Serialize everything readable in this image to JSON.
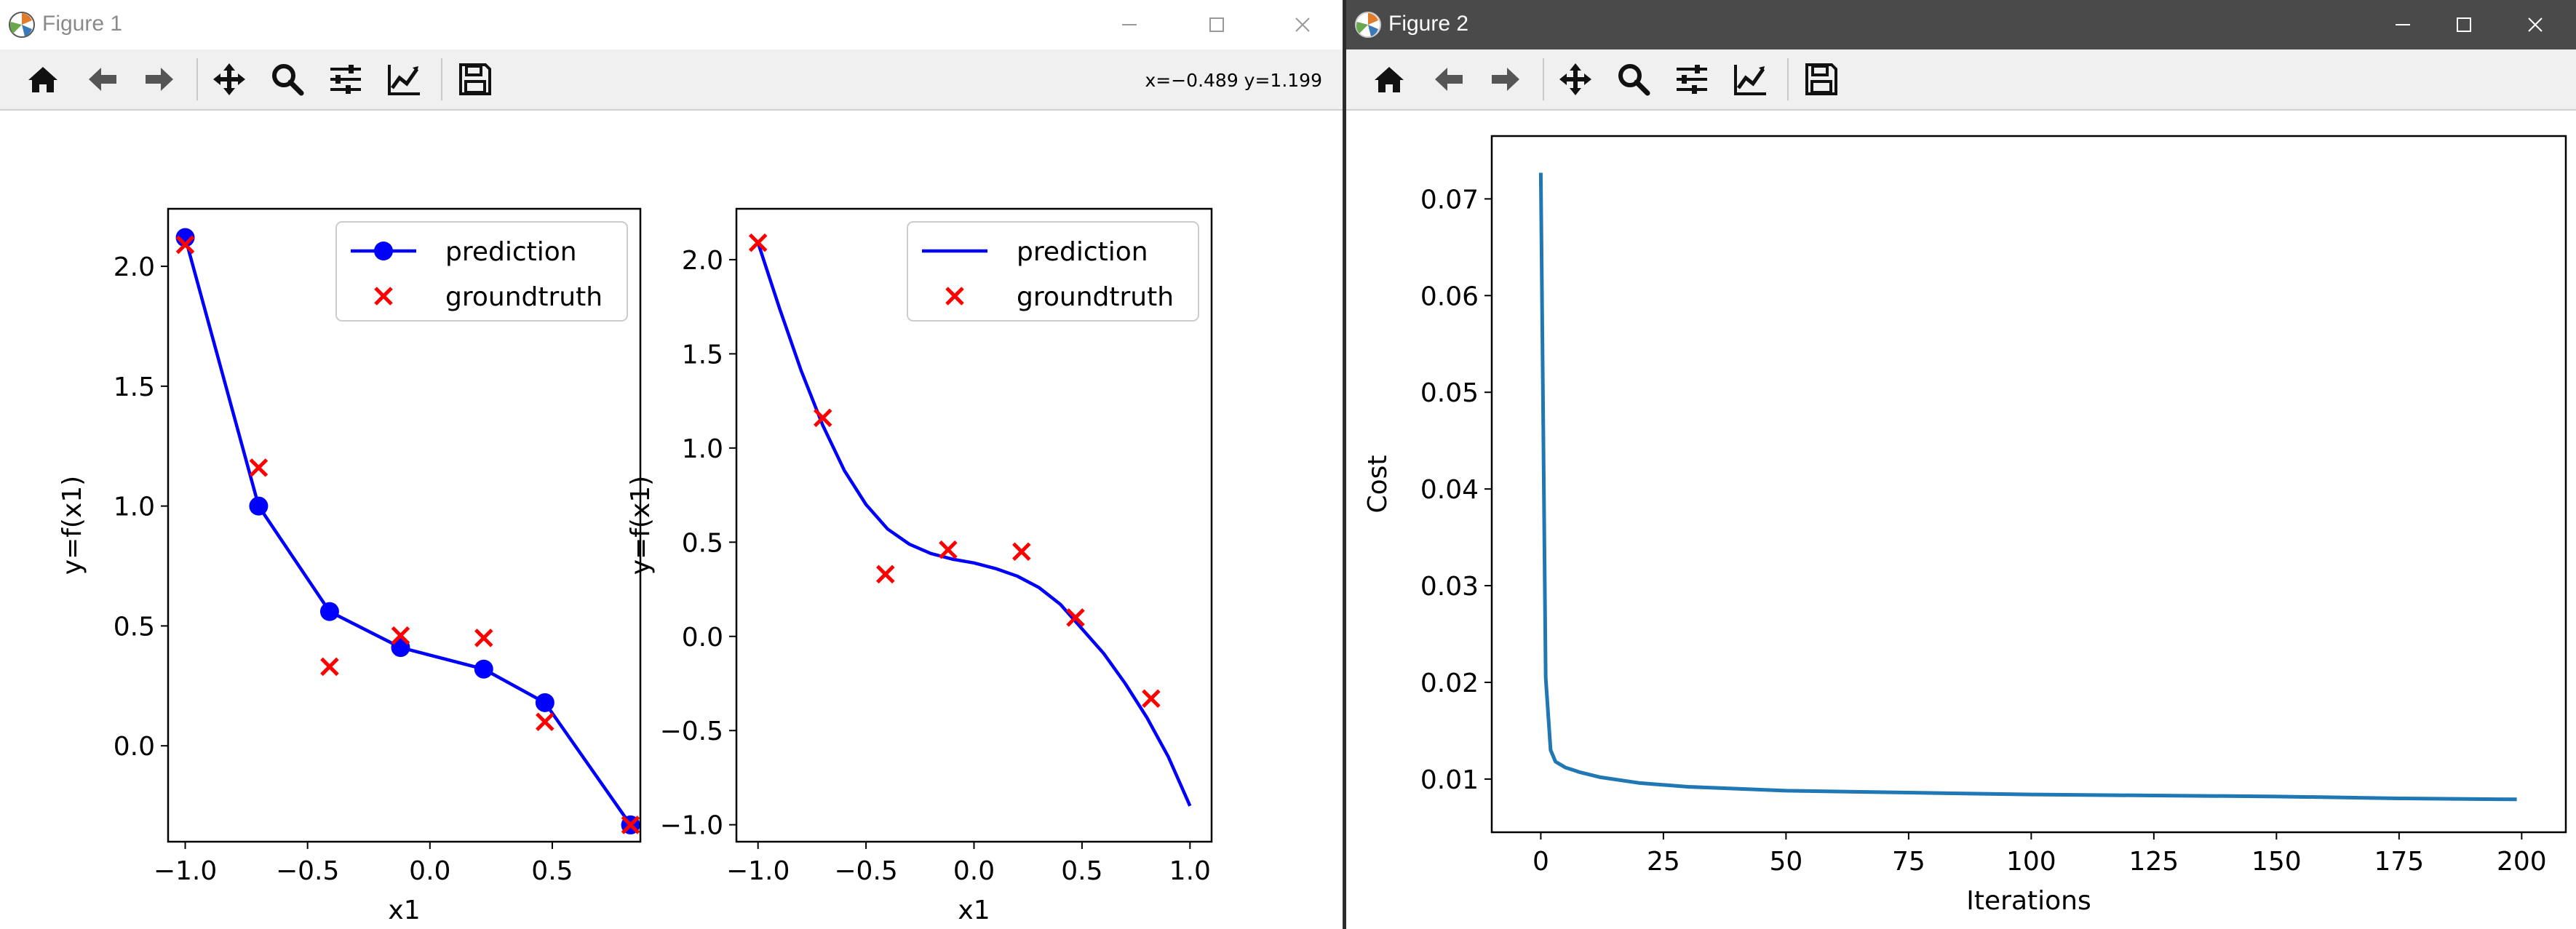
{
  "window1": {
    "title": "Figure 1",
    "coords_readout": "x=−0.489 y=1.199",
    "toolbar": [
      "home-icon",
      "back-arrow-icon",
      "forward-arrow-icon",
      "pan-move-icon",
      "zoom-magnifier-icon",
      "configure-subplots-icon",
      "edit-axis-icon",
      "save-disk-icon"
    ]
  },
  "window2": {
    "title": "Figure 2",
    "toolbar": [
      "home-icon",
      "back-arrow-icon",
      "forward-arrow-icon",
      "pan-move-icon",
      "zoom-magnifier-icon",
      "configure-subplots-icon",
      "edit-axis-icon",
      "save-disk-icon"
    ]
  },
  "colors": {
    "prediction": "#0000ff",
    "groundtruth": "#ff0000",
    "cost_line": "#1f77b4"
  },
  "chart_data": [
    {
      "type": "line",
      "xlabel": "x1",
      "ylabel": "y=f(x1)",
      "xlim": [
        -1.07,
        0.86
      ],
      "ylim": [
        -0.4,
        2.24
      ],
      "xticks": [
        "−1.0",
        "−0.5",
        "0.0",
        "0.5"
      ],
      "xtick_values": [
        -1.0,
        -0.5,
        0.0,
        0.5
      ],
      "yticks": [
        "0.0",
        "0.5",
        "1.0",
        "1.5",
        "2.0"
      ],
      "ytick_values": [
        0.0,
        0.5,
        1.0,
        1.5,
        2.0
      ],
      "legend_position": "top-right",
      "series": [
        {
          "name": "prediction",
          "marker": "dot-line",
          "x": [
            -1.0,
            -0.7,
            -0.41,
            -0.12,
            0.22,
            0.47,
            0.82
          ],
          "y": [
            2.12,
            1.0,
            0.56,
            0.41,
            0.32,
            0.18,
            -0.33
          ]
        },
        {
          "name": "groundtruth",
          "marker": "x",
          "x": [
            -1.0,
            -0.7,
            -0.41,
            -0.12,
            0.22,
            0.47,
            0.82
          ],
          "y": [
            2.09,
            1.16,
            0.33,
            0.46,
            0.45,
            0.1,
            -0.33
          ]
        }
      ]
    },
    {
      "type": "line",
      "xlabel": "x1",
      "ylabel": "y=f(x1)",
      "xlim": [
        -1.1,
        1.1
      ],
      "ylim": [
        -1.09,
        2.27
      ],
      "xticks": [
        "−1.0",
        "−0.5",
        "0.0",
        "0.5",
        "1.0"
      ],
      "xtick_values": [
        -1.0,
        -0.5,
        0.0,
        0.5,
        1.0
      ],
      "yticks": [
        "−1.0",
        "−0.5",
        "0.0",
        "0.5",
        "1.0",
        "1.5",
        "2.0"
      ],
      "ytick_values": [
        -1.0,
        -0.5,
        0.0,
        0.5,
        1.0,
        1.5,
        2.0
      ],
      "legend_position": "top-right",
      "series": [
        {
          "name": "prediction",
          "marker": "line",
          "x": [
            -1.0,
            -0.9,
            -0.8,
            -0.7,
            -0.6,
            -0.5,
            -0.4,
            -0.3,
            -0.2,
            -0.1,
            0.0,
            0.1,
            0.2,
            0.3,
            0.4,
            0.5,
            0.6,
            0.7,
            0.8,
            0.9,
            1.0
          ],
          "y": [
            2.09,
            1.74,
            1.41,
            1.12,
            0.88,
            0.7,
            0.57,
            0.49,
            0.44,
            0.41,
            0.39,
            0.36,
            0.32,
            0.26,
            0.17,
            0.04,
            -0.09,
            -0.25,
            -0.43,
            -0.64,
            -0.9
          ]
        },
        {
          "name": "groundtruth",
          "marker": "x",
          "x": [
            -1.0,
            -0.7,
            -0.41,
            -0.12,
            0.22,
            0.47,
            0.82
          ],
          "y": [
            2.09,
            1.16,
            0.33,
            0.46,
            0.45,
            0.1,
            -0.33
          ]
        }
      ]
    },
    {
      "type": "line",
      "xlabel": "Iterations",
      "ylabel": "Cost",
      "xlim": [
        -10,
        209
      ],
      "ylim": [
        0.0045,
        0.0765
      ],
      "xticks": [
        "0",
        "25",
        "50",
        "75",
        "100",
        "125",
        "150",
        "175",
        "200"
      ],
      "xtick_values": [
        0,
        25,
        50,
        75,
        100,
        125,
        150,
        175,
        200
      ],
      "yticks": [
        "0.01",
        "0.02",
        "0.03",
        "0.04",
        "0.05",
        "0.06",
        "0.07"
      ],
      "ytick_values": [
        0.01,
        0.02,
        0.03,
        0.04,
        0.05,
        0.06,
        0.07
      ],
      "series": [
        {
          "x": [
            0,
            1,
            2,
            3,
            5,
            8,
            12,
            20,
            30,
            50,
            75,
            100,
            125,
            150,
            175,
            199
          ],
          "y": [
            0.0727,
            0.0205,
            0.013,
            0.0118,
            0.0112,
            0.0107,
            0.0102,
            0.0096,
            0.0092,
            0.0088,
            0.0086,
            0.0084,
            0.0083,
            0.0082,
            0.008,
            0.0079
          ]
        }
      ]
    }
  ]
}
